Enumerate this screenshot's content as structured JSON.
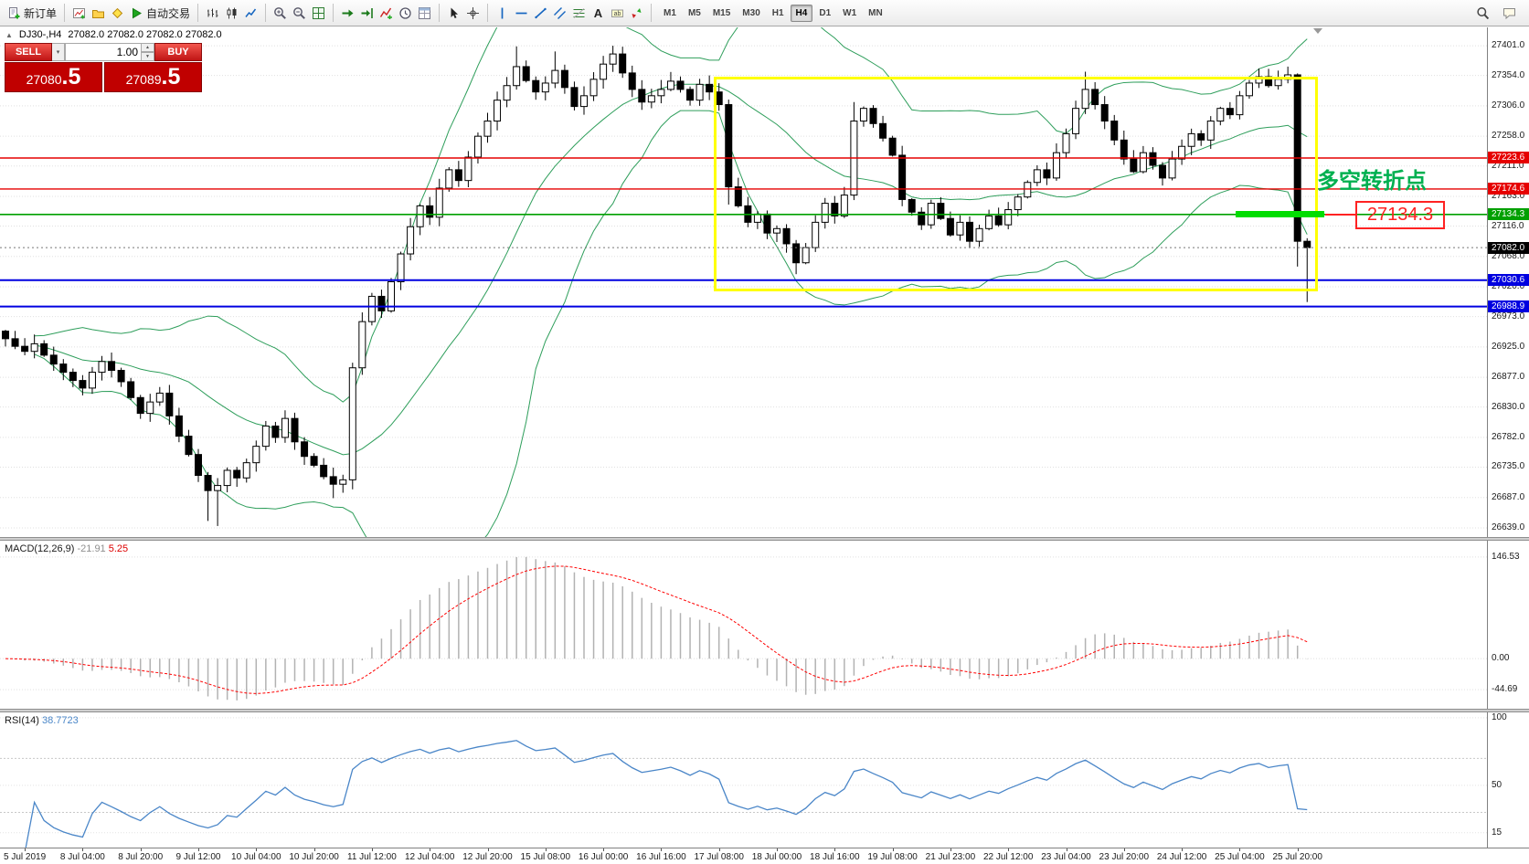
{
  "toolbar": {
    "groups": [
      {
        "items": [
          {
            "name": "new-order",
            "icon": "new-order-icon",
            "label": "新订单"
          }
        ]
      },
      {
        "items": [
          {
            "name": "new-chart",
            "icon": "new-chart-icon"
          },
          {
            "name": "profiles",
            "icon": "profiles-icon"
          },
          {
            "name": "metaeditor",
            "icon": "metaeditor-icon"
          },
          {
            "name": "autotrading",
            "icon": "autotrading-icon",
            "label": "自动交易"
          }
        ]
      },
      {
        "items": [
          {
            "name": "bar-chart",
            "icon": "bar-chart-icon"
          },
          {
            "name": "candlestick-chart",
            "icon": "candlestick-chart-icon"
          },
          {
            "name": "line-chart",
            "icon": "line-chart-icon"
          }
        ]
      },
      {
        "items": [
          {
            "name": "zoom-in",
            "icon": "zoom-in-icon"
          },
          {
            "name": "zoom-out",
            "icon": "zoom-out-icon"
          },
          {
            "name": "tile-windows",
            "icon": "tile-windows-icon"
          }
        ]
      },
      {
        "items": [
          {
            "name": "auto-scroll",
            "icon": "auto-scroll-icon"
          },
          {
            "name": "chart-shift",
            "icon": "chart-shift-icon"
          },
          {
            "name": "indicators",
            "icon": "indicators-icon"
          },
          {
            "name": "periods",
            "icon": "periods-icon"
          },
          {
            "name": "templates",
            "icon": "templates-icon"
          }
        ]
      },
      {
        "items": [
          {
            "name": "cursor",
            "icon": "cursor-icon"
          },
          {
            "name": "crosshair",
            "icon": "crosshair-icon"
          }
        ]
      },
      {
        "items": [
          {
            "name": "vertical-line",
            "icon": "vertical-line-icon"
          },
          {
            "name": "horizontal-line",
            "icon": "horizontal-line-icon"
          },
          {
            "name": "trendline",
            "icon": "trendline-icon"
          },
          {
            "name": "equidistant-channel",
            "icon": "channel-icon"
          },
          {
            "name": "fibonacci",
            "icon": "fibonacci-icon"
          },
          {
            "name": "text",
            "icon": "text-icon"
          },
          {
            "name": "text-label",
            "icon": "text-label-icon"
          },
          {
            "name": "arrows",
            "icon": "arrows-icon"
          }
        ]
      }
    ],
    "timeframes": [
      {
        "label": "M1",
        "active": false
      },
      {
        "label": "M5",
        "active": false
      },
      {
        "label": "M15",
        "active": false
      },
      {
        "label": "M30",
        "active": false
      },
      {
        "label": "H1",
        "active": false
      },
      {
        "label": "H4",
        "active": true
      },
      {
        "label": "D1",
        "active": false
      },
      {
        "label": "W1",
        "active": false
      },
      {
        "label": "MN",
        "active": false
      }
    ],
    "right_items": [
      {
        "name": "search",
        "icon": "search-icon"
      },
      {
        "name": "chat",
        "icon": "chat-icon"
      }
    ]
  },
  "chart": {
    "symbol_label": "DJ30-,H4",
    "ohlc": "27082.0 27082.0 27082.0 27082.0",
    "one_click": {
      "sell_label": "SELL",
      "buy_label": "BUY",
      "lot": "1.00",
      "sell_price_main": "27080",
      "sell_price_frac": ".5",
      "buy_price_main": "27089",
      "buy_price_frac": ".5"
    },
    "price_ticks": [
      "27401.0",
      "27354.0",
      "27306.0",
      "27258.0",
      "27211.0",
      "27163.0",
      "27116.0",
      "27068.0",
      "27020.0",
      "26973.0",
      "26925.0",
      "26877.0",
      "26830.0",
      "26782.0",
      "26735.0",
      "26687.0",
      "26639.0"
    ],
    "lines": [
      {
        "price": 27223.6,
        "label": "27223.6",
        "color": "#e60000",
        "width": 1.4
      },
      {
        "price": 27174.6,
        "label": "27174.6",
        "color": "#e60000",
        "width": 1.4
      },
      {
        "price": 27134.3,
        "label": "27134.3",
        "color": "#00a000",
        "width": 1.6
      },
      {
        "price": 27030.6,
        "label": "27030.6",
        "color": "#0000e0",
        "width": 2
      },
      {
        "price": 26988.9,
        "label": "26988.9",
        "color": "#0000e0",
        "width": 2
      }
    ],
    "current_price": {
      "value": 27082.0,
      "label": "27082.0",
      "color": "#000000"
    },
    "annotations": {
      "yellow_box": {
        "from_candle": 73.5,
        "to_candle": 135.5,
        "price_top": 27352,
        "price_bottom": 27022,
        "color": "#ffff00"
      },
      "green_marker": {
        "price": 27134.3,
        "from_candle": 127.6,
        "to_candle": 136.8,
        "color": "#00dd00"
      },
      "turning_point": {
        "text": "多空转折点",
        "color": "#00b050"
      },
      "price_callout": {
        "text": "27134.3",
        "color": "#ff2222"
      }
    }
  },
  "macd": {
    "label": "MACD(12,26,9)",
    "value_main": "-21.91",
    "value_signal": "5.25",
    "ticks": [
      "146.53",
      "0.00",
      "-44.69"
    ]
  },
  "rsi": {
    "label": "RSI(14)",
    "value": "38.7723",
    "ticks": [
      "100",
      "50",
      "15"
    ],
    "levels": [
      70,
      30
    ]
  },
  "time_labels": [
    "5 Jul 2019",
    "8 Jul 04:00",
    "8 Jul 20:00",
    "9 Jul 12:00",
    "10 Jul 04:00",
    "10 Jul 20:00",
    "11 Jul 12:00",
    "12 Jul 04:00",
    "12 Jul 20:00",
    "15 Jul 08:00",
    "16 Jul 00:00",
    "16 Jul 16:00",
    "17 Jul 08:00",
    "18 Jul 00:00",
    "18 Jul 16:00",
    "19 Jul 08:00",
    "21 Jul 23:00",
    "22 Jul 12:00",
    "23 Jul 04:00",
    "23 Jul 20:00",
    "24 Jul 12:00",
    "25 Jul 04:00",
    "25 Jul 20:00"
  ],
  "chart_data": {
    "type": "candlestick",
    "symbol": "DJ30-",
    "period": "H4",
    "visible_price_range": [
      26639,
      27401
    ],
    "first_open": 26950,
    "closes": [
      26938,
      26926,
      26918,
      26930,
      26912,
      26898,
      26885,
      26872,
      26860,
      26885,
      26902,
      26888,
      26870,
      26845,
      26820,
      26838,
      26852,
      26816,
      26784,
      26755,
      26722,
      26698,
      26706,
      26730,
      26718,
      26742,
      26768,
      26800,
      26782,
      26812,
      26775,
      26752,
      26738,
      26720,
      26708,
      26715,
      26892,
      26965,
      27005,
      26982,
      27028,
      27072,
      27115,
      27148,
      27130,
      27176,
      27205,
      27188,
      27225,
      27258,
      27282,
      27315,
      27338,
      27368,
      27346,
      27328,
      27342,
      27362,
      27335,
      27305,
      27322,
      27348,
      27372,
      27388,
      27358,
      27332,
      27312,
      27322,
      27332,
      27345,
      27332,
      27315,
      27340,
      27328,
      27308,
      27178,
      27148,
      27122,
      27135,
      27105,
      27112,
      27088,
      27058,
      27082,
      27122,
      27152,
      27132,
      27165,
      27282,
      27302,
      27278,
      27255,
      27228,
      27158,
      27138,
      27118,
      27152,
      27128,
      27102,
      27122,
      27092,
      27112,
      27132,
      27118,
      27142,
      27162,
      27185,
      27205,
      27192,
      27232,
      27262,
      27302,
      27332,
      27308,
      27282,
      27252,
      27222,
      27202,
      27232,
      27212,
      27192,
      27222,
      27242,
      27262,
      27252,
      27282,
      27302,
      27292,
      27322,
      27342,
      27352,
      27338,
      27348,
      27355,
      27092,
      27082
    ],
    "overrides": {
      "21": {
        "low": 26650
      },
      "22": {
        "low": 26642
      },
      "34": {
        "low": 26686
      },
      "36": {
        "low": 26700,
        "high": 26900
      },
      "53": {
        "high": 27400
      },
      "57": {
        "high": 27392
      },
      "63": {
        "high": 27401
      },
      "75": {
        "low": 27150
      },
      "82": {
        "low": 27040
      },
      "88": {
        "high": 27312
      },
      "112": {
        "high": 27360
      },
      "130": {
        "high": 27365
      },
      "134": {
        "low": 27052
      },
      "135": {
        "low": 26996
      }
    },
    "indicators": {
      "bollinger": {
        "period": 20,
        "deviation": 2
      },
      "macd": [
        12,
        26,
        9
      ],
      "rsi": 14
    }
  }
}
